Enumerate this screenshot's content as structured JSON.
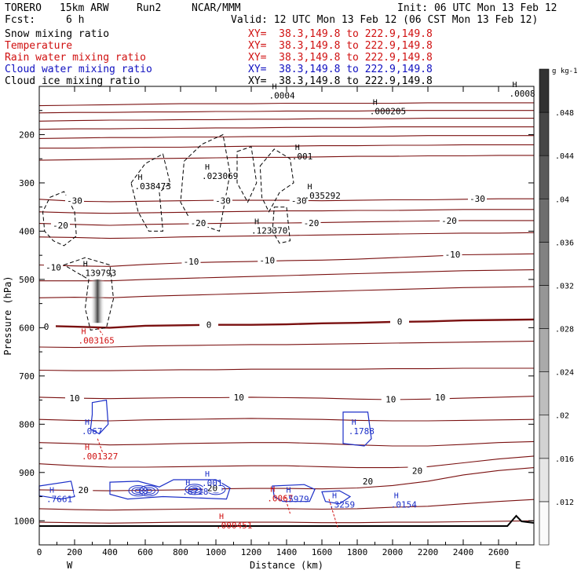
{
  "header": {
    "model": "TORERO",
    "grid": "15km ARW",
    "run": "Run2",
    "org": "NCAR/MMM",
    "init": "Init: 06 UTC Mon 13 Feb 12",
    "fcst_label": "Fcst:",
    "fcst_value": "6 h",
    "valid": "Valid: 12 UTC Mon 13 Feb 12 (06 CST Mon 13 Feb 12)"
  },
  "fields": [
    {
      "name": "Snow mixing ratio",
      "xy": "XY=  38.3,149.8 to 222.9,149.8",
      "color": "#000000"
    },
    {
      "name": "Temperature",
      "xy": "XY=  38.3,149.8 to 222.9,149.8",
      "color": "#d01010"
    },
    {
      "name": "Rain water mixing ratio",
      "xy": "XY=  38.3,149.8 to 222.9,149.8",
      "color": "#d01010"
    },
    {
      "name": "Cloud water mixing ratio",
      "xy": "XY=  38.3,149.8 to 222.9,149.8",
      "color": "#1010c0"
    },
    {
      "name": "Cloud ice mixing ratio",
      "xy": "XY=  38.3,149.8 to 222.9,149.8",
      "color": "#000000"
    }
  ],
  "chart_data": {
    "type": "cross-section contour",
    "xlabel": "Distance (km)",
    "ylabel": "Pressure (hPa)",
    "xlim": [
      0,
      2800
    ],
    "ylim": [
      1050,
      100
    ],
    "x_ticks": [
      0,
      200,
      400,
      600,
      800,
      1000,
      1200,
      1400,
      1600,
      1800,
      2000,
      2200,
      2400,
      2600
    ],
    "y_ticks": [
      200,
      300,
      400,
      500,
      600,
      700,
      800,
      900,
      1000
    ],
    "x_end_labels": {
      "left": "W",
      "right": "E"
    },
    "colorbar": {
      "unit": "g kg-1",
      "ticks": [
        ".012",
        ".016",
        ".02",
        ".024",
        ".028",
        ".032",
        ".036",
        ".04",
        ".044",
        ".048"
      ]
    },
    "temperature_labels": [
      {
        "x": 200,
        "p": 337,
        "text": "-30"
      },
      {
        "x": 1040,
        "p": 337,
        "text": "-30"
      },
      {
        "x": 1470,
        "p": 337,
        "text": "-30"
      },
      {
        "x": 2480,
        "p": 333,
        "text": "-30"
      },
      {
        "x": 120,
        "p": 388,
        "text": "-20"
      },
      {
        "x": 900,
        "p": 383,
        "text": "-20"
      },
      {
        "x": 1540,
        "p": 383,
        "text": "-20"
      },
      {
        "x": 2320,
        "p": 378,
        "text": "-20"
      },
      {
        "x": 80,
        "p": 475,
        "text": "-10"
      },
      {
        "x": 860,
        "p": 463,
        "text": "-10"
      },
      {
        "x": 1290,
        "p": 460,
        "text": "-10"
      },
      {
        "x": 2340,
        "p": 448,
        "text": "-10"
      },
      {
        "x": 40,
        "p": 598,
        "text": "0"
      },
      {
        "x": 960,
        "p": 594,
        "text": "0"
      },
      {
        "x": 2040,
        "p": 587,
        "text": "0"
      },
      {
        "x": 200,
        "p": 746,
        "text": "10"
      },
      {
        "x": 1130,
        "p": 744,
        "text": "10"
      },
      {
        "x": 1990,
        "p": 748,
        "text": "10"
      },
      {
        "x": 2270,
        "p": 744,
        "text": "10"
      },
      {
        "x": 250,
        "p": 936,
        "text": "20"
      },
      {
        "x": 980,
        "p": 932,
        "text": "20"
      },
      {
        "x": 1860,
        "p": 918,
        "text": "20"
      },
      {
        "x": 2140,
        "p": 896,
        "text": "20"
      }
    ],
    "maxima": [
      {
        "x": 2660,
        "p": 108,
        "text": ".0008",
        "field": "snow"
      },
      {
        "x": 1300,
        "p": 112,
        "text": ".0004",
        "field": "snow"
      },
      {
        "x": 1870,
        "p": 145,
        "text": ".000205",
        "field": "snow"
      },
      {
        "x": 1430,
        "p": 238,
        "text": ".001",
        "field": "snow"
      },
      {
        "x": 920,
        "p": 279,
        "text": ".023069",
        "field": "snow"
      },
      {
        "x": 540,
        "p": 300,
        "text": ".038473",
        "field": "snow"
      },
      {
        "x": 1500,
        "p": 320,
        "text": ".035292",
        "field": "snow"
      },
      {
        "x": 1200,
        "p": 392,
        "text": ".123370",
        "field": "snow"
      },
      {
        "x": 230,
        "p": 480,
        "text": ".139793",
        "field": "snow"
      },
      {
        "x": 220,
        "p": 620,
        "text": ".003165",
        "field": "rain"
      },
      {
        "x": 240,
        "p": 860,
        "text": ".001327",
        "field": "rain"
      },
      {
        "x": 1000,
        "p": 1003,
        "text": ".000451",
        "field": "rain"
      },
      {
        "x": 1290,
        "p": 947,
        "text": ".0067",
        "field": "rain"
      },
      {
        "x": 240,
        "p": 808,
        "text": ".067",
        "field": "cloudwater"
      },
      {
        "x": 1750,
        "p": 808,
        "text": ".1788",
        "field": "cloudwater"
      },
      {
        "x": 810,
        "p": 933,
        "text": ".6728",
        "field": "cloudwater"
      },
      {
        "x": 920,
        "p": 915,
        "text": ".001",
        "field": "cloudwater"
      },
      {
        "x": 1380,
        "p": 948,
        "text": ".5979",
        "field": "cloudwater"
      },
      {
        "x": 1640,
        "p": 960,
        "text": ".3259",
        "field": "cloudwater"
      },
      {
        "x": 1990,
        "p": 960,
        "text": ".0154",
        "field": "cloudwater"
      },
      {
        "x": 40,
        "p": 948,
        "text": ".7661",
        "field": "cloudwater"
      }
    ],
    "temperature_contours": [
      {
        "level": "-40",
        "p": [
          140,
          139,
          138,
          137,
          136,
          136,
          136,
          135,
          135,
          135,
          135,
          134,
          134,
          134,
          134
        ]
      },
      {
        "level": "-40b",
        "p": [
          155,
          154,
          154,
          153,
          153,
          152,
          152,
          151,
          151,
          151,
          150,
          150,
          150,
          150,
          150
        ]
      },
      {
        "level": "-40c",
        "p": [
          172,
          171,
          170,
          170,
          169,
          169,
          168,
          168,
          167,
          167,
          167,
          166,
          166,
          166,
          166
        ]
      },
      {
        "level": "-40d",
        "p": [
          189,
          188,
          188,
          187,
          187,
          186,
          186,
          185,
          185,
          185,
          184,
          184,
          184,
          184,
          184
        ]
      },
      {
        "level": "-40e",
        "p": [
          208,
          207,
          206,
          206,
          205,
          205,
          204,
          204,
          203,
          203,
          203,
          202,
          202,
          202,
          202
        ]
      },
      {
        "level": "-40f",
        "p": [
          228,
          228,
          227,
          226,
          226,
          225,
          224,
          224,
          223,
          223,
          222,
          222,
          221,
          221,
          221
        ]
      },
      {
        "level": "-40g",
        "p": [
          253,
          252,
          251,
          250,
          249,
          248,
          247,
          247,
          246,
          245,
          245,
          244,
          244,
          243,
          243
        ]
      },
      {
        "level": "-30",
        "p": [
          334,
          338,
          339,
          338,
          337,
          336,
          336,
          336,
          337,
          336,
          335,
          335,
          334,
          333,
          333
        ]
      },
      {
        "level": "-30b",
        "p": [
          360,
          362,
          363,
          362,
          361,
          360,
          359,
          358,
          358,
          357,
          357,
          356,
          355,
          355,
          355
        ]
      },
      {
        "level": "-20",
        "p": [
          384,
          386,
          388,
          386,
          385,
          384,
          383,
          383,
          382,
          381,
          380,
          379,
          378,
          378,
          378
        ]
      },
      {
        "level": "-20b",
        "p": [
          412,
          413,
          415,
          414,
          412,
          411,
          410,
          409,
          408,
          407,
          406,
          405,
          404,
          404,
          403
        ]
      },
      {
        "level": "-10",
        "p": [
          470,
          472,
          473,
          469,
          466,
          464,
          463,
          461,
          460,
          458,
          455,
          452,
          449,
          448,
          447
        ]
      },
      {
        "level": "-10b",
        "p": [
          503,
          503,
          503,
          500,
          498,
          496,
          494,
          492,
          490,
          488,
          486,
          484,
          482,
          481,
          480
        ]
      },
      {
        "level": "-10c",
        "p": [
          538,
          537,
          538,
          535,
          533,
          531,
          529,
          527,
          525,
          523,
          521,
          519,
          517,
          516,
          515
        ]
      },
      {
        "level": "0",
        "p": [
          596,
          598,
          600,
          596,
          595,
          594,
          594,
          593,
          591,
          590,
          588,
          587,
          585,
          584,
          583
        ]
      },
      {
        "level": "0b",
        "p": [
          640,
          641,
          640,
          638,
          637,
          636,
          635,
          635,
          634,
          633,
          632,
          631,
          630,
          629,
          628
        ]
      },
      {
        "level": "10a",
        "p": [
          688,
          689,
          689,
          688,
          687,
          687,
          686,
          686,
          686,
          686,
          685,
          685,
          684,
          684,
          684
        ]
      },
      {
        "level": "10",
        "p": [
          744,
          746,
          747,
          746,
          745,
          745,
          744,
          745,
          746,
          748,
          749,
          748,
          746,
          744,
          742
        ]
      },
      {
        "level": "10b",
        "p": [
          790,
          792,
          793,
          791,
          790,
          789,
          788,
          789,
          790,
          792,
          793,
          793,
          792,
          791,
          790
        ]
      },
      {
        "level": "10c",
        "p": [
          838,
          840,
          843,
          842,
          840,
          839,
          838,
          838,
          840,
          843,
          845,
          845,
          842,
          838,
          836
        ]
      },
      {
        "level": "20a",
        "p": [
          882,
          886,
          889,
          889,
          888,
          887,
          886,
          886,
          888,
          890,
          890,
          888,
          880,
          872,
          866
        ]
      },
      {
        "level": "20",
        "p": [
          936,
          937,
          938,
          937,
          936,
          934,
          933,
          933,
          934,
          932,
          927,
          918,
          905,
          896,
          890
        ]
      },
      {
        "level": "20b",
        "p": [
          975,
          977,
          978,
          977,
          976,
          975,
          975,
          975,
          976,
          975,
          972,
          970,
          965,
          960,
          956
        ]
      },
      {
        "level": "30",
        "p": [
          1003,
          1004,
          1005,
          1004,
          1003,
          1003,
          1003,
          1003,
          1004,
          1004,
          1003,
          1003,
          1002,
          1001,
          1000
        ]
      }
    ]
  }
}
